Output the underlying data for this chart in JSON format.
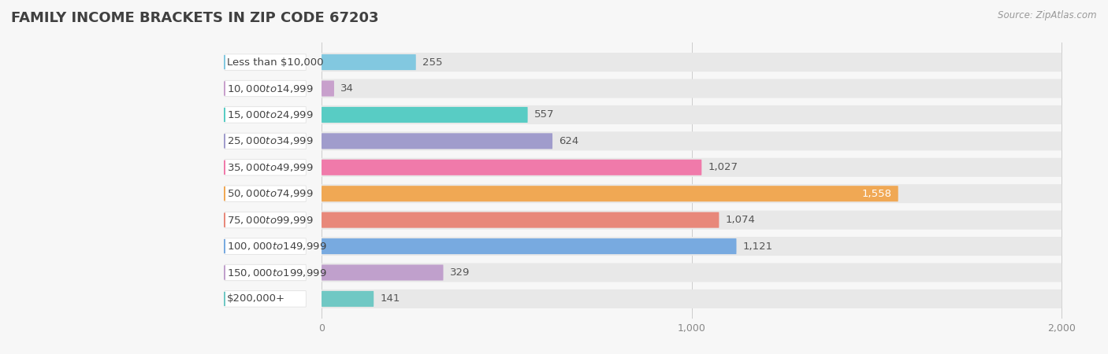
{
  "title": "FAMILY INCOME BRACKETS IN ZIP CODE 67203",
  "source_text": "Source: ZipAtlas.com",
  "categories": [
    "Less than $10,000",
    "$10,000 to $14,999",
    "$15,000 to $24,999",
    "$25,000 to $34,999",
    "$35,000 to $49,999",
    "$50,000 to $74,999",
    "$75,000 to $99,999",
    "$100,000 to $149,999",
    "$150,000 to $199,999",
    "$200,000+"
  ],
  "values": [
    255,
    34,
    557,
    624,
    1027,
    1558,
    1074,
    1121,
    329,
    141
  ],
  "bar_colors": [
    "#82c8e0",
    "#c8a0cc",
    "#58ccc4",
    "#a09ccc",
    "#f07aaa",
    "#f0a854",
    "#e8887a",
    "#78aae0",
    "#c0a0cc",
    "#70c8c4"
  ],
  "background_color": "#f7f7f7",
  "bar_bg_color": "#e8e8e8",
  "label_bg_color": "#ffffff",
  "xlim_max": 2000,
  "title_fontsize": 13,
  "label_fontsize": 9.5,
  "value_fontsize": 9.5
}
